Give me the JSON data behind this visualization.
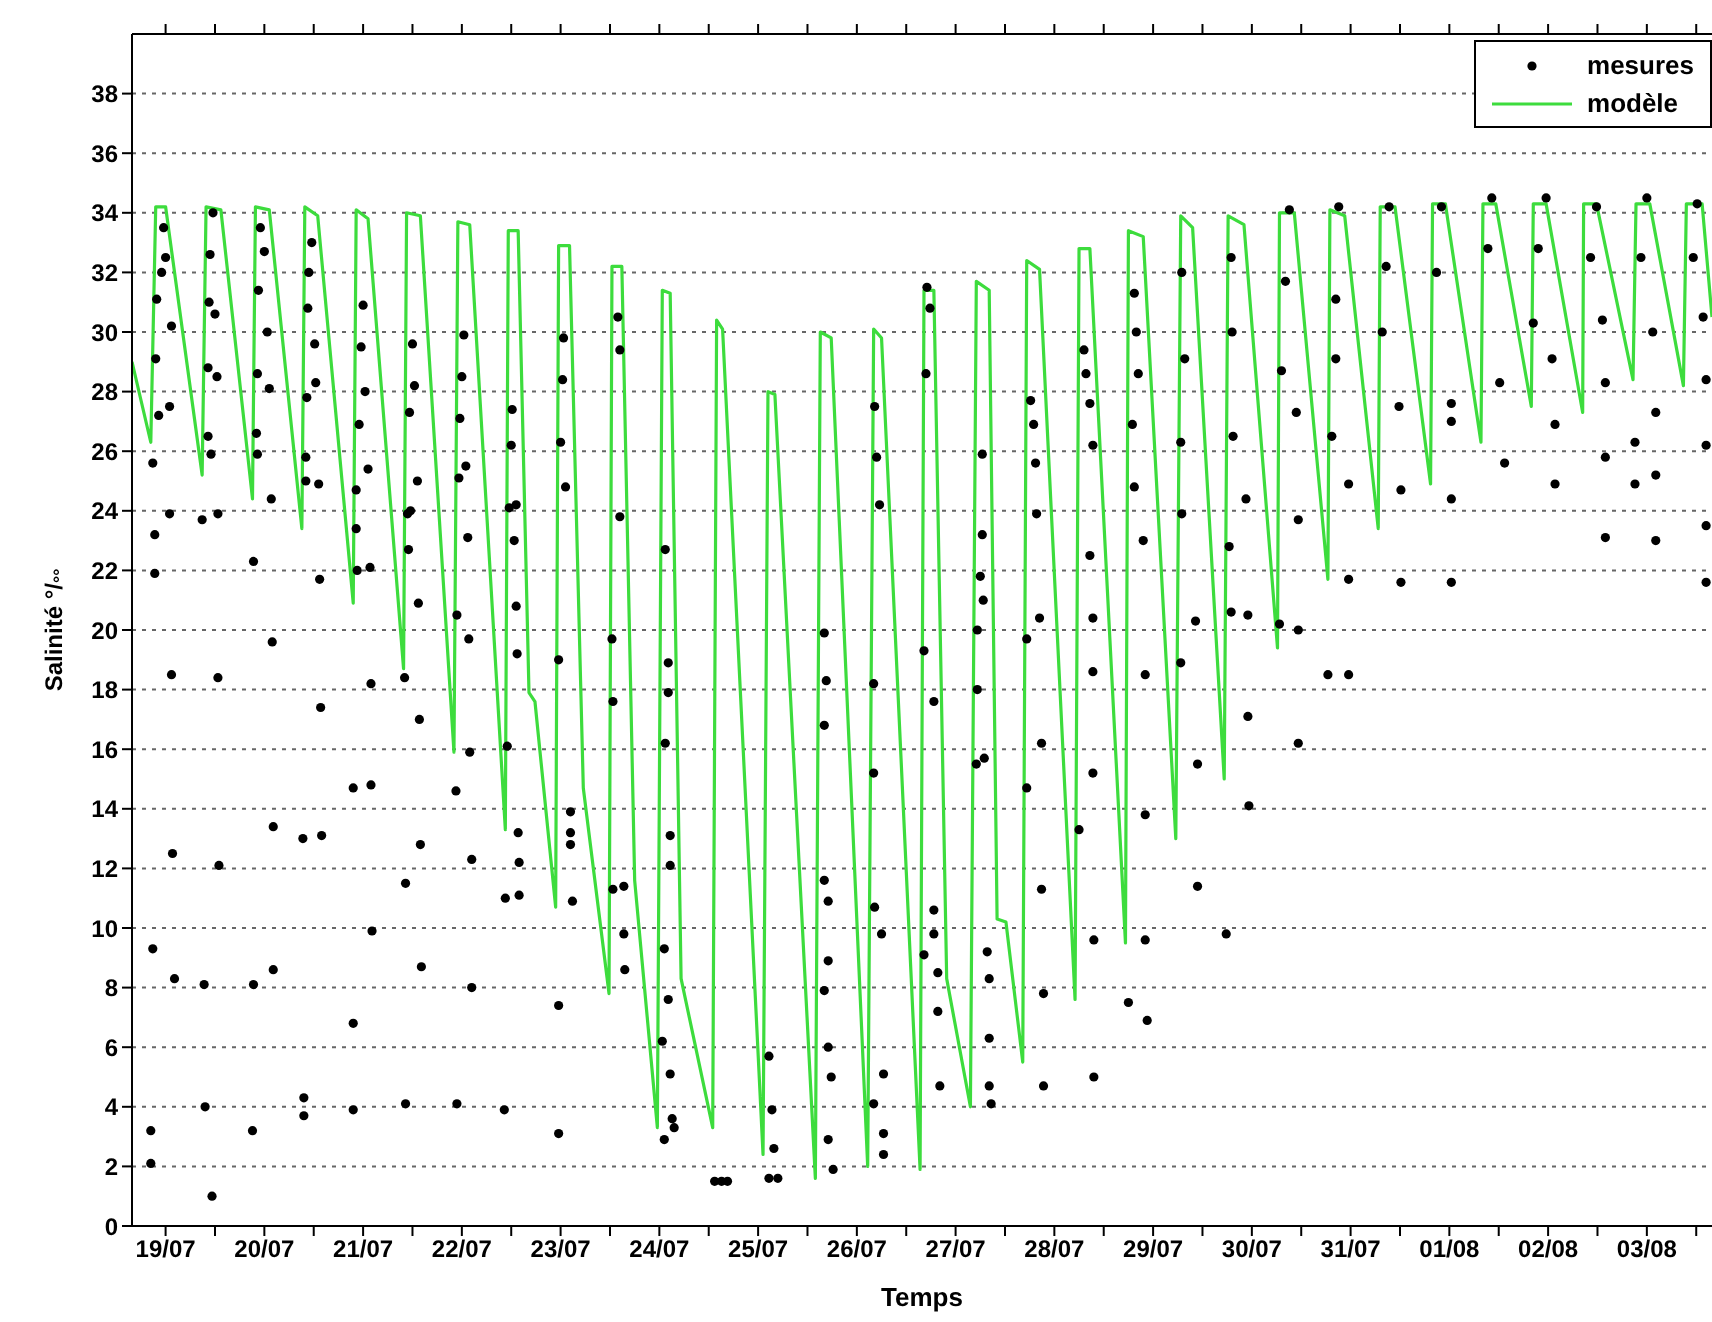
{
  "chart_data": {
    "type": "line",
    "xlabel": "Temps",
    "ylabel": "Salinité °/$_{°°}$",
    "xlim": [
      "--07-18T15:50",
      "--08-03T15:50"
    ],
    "ylim": [
      0,
      40
    ],
    "xticks": [
      {
        "value": "--07-19",
        "label": "19/07"
      },
      {
        "value": "--07-19T12:00",
        "label": null
      },
      {
        "value": "--07-20",
        "label": "20/07"
      },
      {
        "value": "--07-20T12:00",
        "label": null
      },
      {
        "value": "--07-21",
        "label": "21/07"
      },
      {
        "value": "--07-21T12:00",
        "label": null
      },
      {
        "value": "--07-22",
        "label": "22/07"
      },
      {
        "value": "--07-22T12:00",
        "label": null
      },
      {
        "value": "--07-23",
        "label": "23/07"
      },
      {
        "value": "--07-23T12:00",
        "label": null
      },
      {
        "value": "--07-24",
        "label": "24/07"
      },
      {
        "value": "--07-24T12:00",
        "label": null
      },
      {
        "value": "--07-25",
        "label": "25/07"
      },
      {
        "value": "--07-25T12:00",
        "label": null
      },
      {
        "value": "--07-26",
        "label": "26/07"
      },
      {
        "value": "--07-26T12:00",
        "label": null
      },
      {
        "value": "--07-27",
        "label": "27/07"
      },
      {
        "value": "--07-27T12:00",
        "label": null
      },
      {
        "value": "--07-28",
        "label": "28/07"
      },
      {
        "value": "--07-28T12:00",
        "label": null
      },
      {
        "value": "--07-29",
        "label": "29/07"
      },
      {
        "value": "--07-29T12:00",
        "label": null
      },
      {
        "value": "--07-30",
        "label": "30/07"
      },
      {
        "value": "--07-30T12:00",
        "label": null
      },
      {
        "value": "--07-31",
        "label": "31/07"
      },
      {
        "value": "--07-31T12:00",
        "label": null
      },
      {
        "value": "--08-01",
        "label": "01/08"
      },
      {
        "value": "--08-01T12:00",
        "label": null
      },
      {
        "value": "--08-02",
        "label": "02/08"
      },
      {
        "value": "--08-02T12:00",
        "label": null
      },
      {
        "value": "--08-03",
        "label": "03/08"
      },
      {
        "value": "--08-03T12:00",
        "label": null
      }
    ],
    "yticks": [
      0,
      2,
      4,
      6,
      8,
      10,
      12,
      14,
      16,
      18,
      20,
      22,
      24,
      26,
      28,
      30,
      32,
      34,
      36,
      38
    ],
    "grid": "y",
    "legend": "top right",
    "series": [
      {
        "name": "mesures",
        "type": "scatter",
        "marker": "circle",
        "color": "#000000",
        "x": [
          "--07-18T20:53",
          "--07-18T21:22",
          "--07-18T21:22",
          "--07-18T20:53",
          "--07-18T20:24",
          "--07-18T20:24",
          "--07-18T21:36",
          "--07-18T21:50",
          "--07-18T23:02",
          "--07-18T23:31",
          "--07-19T00:00",
          "--07-18T22:19",
          "--07-19T00:58",
          "--07-19T01:26",
          "--07-19T01:41",
          "--07-19T02:10",
          "--07-19T01:26",
          "--07-19T00:58",
          "--07-19T08:53",
          "--07-19T09:22",
          "--07-19T09:36",
          "--07-19T10:19",
          "--07-19T10:19",
          "--07-19T10:34",
          "--07-19T10:48",
          "--07-19T11:31",
          "--07-19T12:00",
          "--07-19T12:29",
          "--07-19T12:43",
          "--07-19T12:43",
          "--07-19T12:58",
          "--07-19T11:17",
          "--07-19T11:02",
          "--07-19T21:22",
          "--07-19T21:22",
          "--07-19T21:07",
          "--07-19T22:05",
          "--07-19T22:19",
          "--07-19T22:34",
          "--07-19T23:02",
          "--07-20T00:00",
          "--07-20T00:43",
          "--07-20T01:12",
          "--07-20T01:41",
          "--07-20T01:55",
          "--07-20T02:10",
          "--07-20T02:10",
          "--07-19T22:19",
          "--07-20T09:22",
          "--07-20T09:36",
          "--07-20T09:36",
          "--07-20T10:05",
          "--07-20T10:05",
          "--07-20T10:19",
          "--07-20T10:34",
          "--07-20T10:48",
          "--07-20T11:31",
          "--07-20T12:14",
          "--07-20T12:29",
          "--07-20T13:12",
          "--07-20T13:26",
          "--07-20T13:41",
          "--07-20T13:55",
          "--07-20T21:36",
          "--07-20T21:36",
          "--07-20T21:36",
          "--07-20T22:19",
          "--07-20T22:19",
          "--07-20T22:34",
          "--07-20T23:02",
          "--07-20T23:31",
          "--07-21T00:00",
          "--07-21T00:29",
          "--07-21T01:12",
          "--07-21T01:41",
          "--07-21T01:55",
          "--07-21T01:55",
          "--07-21T02:10",
          "--07-21T10:05",
          "--07-21T10:19",
          "--07-21T10:19",
          "--07-21T10:48",
          "--07-21T11:02",
          "--07-21T11:17",
          "--07-21T12:00",
          "--07-21T12:29",
          "--07-21T13:12",
          "--07-21T13:26",
          "--07-21T13:41",
          "--07-21T13:55",
          "--07-21T14:10",
          "--07-21T11:31",
          "--07-21T22:34",
          "--07-21T22:48",
          "--07-21T22:48",
          "--07-21T23:17",
          "--07-21T23:31",
          "--07-22T00:00",
          "--07-22T00:29",
          "--07-22T00:58",
          "--07-22T01:26",
          "--07-22T01:41",
          "--07-22T01:55",
          "--07-22T02:24",
          "--07-22T02:24",
          "--07-22T11:02",
          "--07-22T10:34",
          "--07-22T10:19",
          "--07-22T11:31",
          "--07-22T12:00",
          "--07-22T12:14",
          "--07-22T12:43",
          "--07-22T13:12",
          "--07-22T13:26",
          "--07-22T13:41",
          "--07-22T13:55",
          "--07-22T13:55",
          "--07-22T13:12",
          "--07-22T23:31",
          "--07-22T23:31",
          "--07-22T23:31",
          "--07-23T00:00",
          "--07-23T00:29",
          "--07-23T00:43",
          "--07-23T01:12",
          "--07-23T02:24",
          "--07-23T02:24",
          "--07-23T02:24",
          "--07-23T02:53",
          "--07-23T12:29",
          "--07-23T12:43",
          "--07-23T13:55",
          "--07-23T14:24",
          "--07-23T14:24",
          "--07-23T12:43",
          "--07-23T15:22",
          "--07-23T15:22",
          "--07-23T15:36",
          "--07-24T00:43",
          "--07-24T01:12",
          "--07-24T02:10",
          "--07-24T02:38",
          "--07-24T03:07",
          "--07-24T03:36",
          "--07-24T01:26",
          "--07-24T02:10",
          "--07-24T02:10",
          "--07-24T01:26",
          "--07-24T02:38",
          "--07-24T02:38",
          "--07-24T01:12",
          "--07-24T13:26",
          "--07-24T15:07",
          "--07-24T16:34",
          "--07-25T02:38",
          "--07-25T03:22",
          "--07-25T03:50",
          "--07-25T02:38",
          "--07-25T04:48",
          "--07-25T16:05",
          "--07-25T16:34",
          "--07-25T16:05",
          "--07-25T16:05",
          "--07-25T17:02",
          "--07-25T17:02",
          "--07-25T16:05",
          "--07-25T17:02",
          "--07-25T17:46",
          "--07-25T17:02",
          "--07-25T18:14",
          "--07-26T04:19",
          "--07-26T04:48",
          "--07-26T05:31",
          "--07-26T04:05",
          "--07-26T04:05",
          "--07-26T04:19",
          "--07-26T06:00",
          "--07-26T04:05",
          "--07-26T06:29",
          "--07-26T06:29",
          "--07-26T06:29",
          "--07-26T17:02",
          "--07-26T17:46",
          "--07-26T16:48",
          "--07-26T16:19",
          "--07-26T18:43",
          "--07-26T18:43",
          "--07-26T18:43",
          "--07-26T19:41",
          "--07-26T19:41",
          "--07-26T16:19",
          "--07-26T20:10",
          "--07-27T06:29",
          "--07-27T06:29",
          "--07-27T06:00",
          "--07-27T06:43",
          "--07-27T05:17",
          "--07-27T05:17",
          "--07-27T05:02",
          "--07-27T06:58",
          "--07-27T07:41",
          "--07-27T08:10",
          "--07-27T08:10",
          "--07-27T08:10",
          "--07-27T08:38",
          "--07-27T18:14",
          "--07-27T18:58",
          "--07-27T19:26",
          "--07-27T19:41",
          "--07-27T17:17",
          "--07-27T17:17",
          "--07-27T20:24",
          "--07-27T20:53",
          "--07-27T20:53",
          "--07-27T21:22",
          "--07-27T21:22",
          "--07-28T07:12",
          "--07-28T07:41",
          "--07-28T08:38",
          "--07-28T09:22",
          "--07-28T08:38",
          "--07-28T09:22",
          "--07-28T09:22",
          "--07-28T09:22",
          "--07-28T06:00",
          "--07-28T09:36",
          "--07-28T09:36",
          "--07-28T19:26",
          "--07-28T19:55",
          "--07-28T20:24",
          "--07-28T18:58",
          "--07-28T19:26",
          "--07-28T21:36",
          "--07-28T22:05",
          "--07-28T22:05",
          "--07-28T22:05",
          "--07-28T18:00",
          "--07-28T22:34",
          "--07-29T06:58",
          "--07-29T07:41",
          "--07-29T06:43",
          "--07-29T06:58",
          "--07-29T06:43",
          "--07-29T10:19",
          "--07-29T10:48",
          "--07-29T10:48",
          "--07-29T18:58",
          "--07-29T19:12",
          "--07-29T19:26",
          "--07-29T18:29",
          "--07-29T18:58",
          "--07-29T22:34",
          "--07-29T23:02",
          "--07-29T23:02",
          "--07-29T23:17",
          "--07-29T17:46",
          "--07-30T09:07",
          "--07-30T08:10",
          "--07-30T07:12",
          "--07-30T10:48",
          "--07-30T11:17",
          "--07-30T11:17",
          "--07-30T11:17",
          "--07-30T06:43",
          "--07-30T21:07",
          "--07-30T20:24",
          "--07-30T20:24",
          "--07-30T19:26",
          "--07-30T23:31",
          "--07-30T23:31",
          "--07-30T18:29",
          "--07-30T23:31",
          "--07-31T09:22",
          "--07-31T08:38",
          "--07-31T07:41",
          "--07-31T11:46",
          "--07-31T12:14",
          "--07-31T12:14",
          "--07-31T22:05",
          "--07-31T20:53",
          "--08-01T00:29",
          "--08-01T00:29",
          "--08-01T00:29",
          "--08-01T00:29",
          "--08-01T10:19",
          "--08-01T09:22",
          "--08-01T12:14",
          "--08-01T13:26",
          "--08-01T23:31",
          "--08-01T21:36",
          "--08-01T20:24",
          "--08-02T00:58",
          "--08-02T01:41",
          "--08-02T01:41",
          "--08-02T11:46",
          "--08-02T10:19",
          "--08-02T13:12",
          "--08-02T13:55",
          "--08-02T13:55",
          "--08-02T13:55",
          "--08-03T00:00",
          "--08-02T22:34",
          "--08-03T01:26",
          "--08-03T02:10",
          "--08-03T02:10",
          "--08-03T02:10",
          "--08-02T21:07",
          "--08-02T21:07",
          "--08-03T12:14",
          "--08-03T11:17",
          "--08-03T13:41",
          "--08-03T14:24",
          "--08-03T14:24",
          "--08-03T14:24",
          "--08-03T14:24"
        ],
        "values": [
          25.6,
          23.2,
          21.9,
          9.3,
          3.2,
          2.1,
          29.1,
          31.1,
          32.0,
          33.5,
          32.5,
          27.2,
          23.9,
          18.5,
          12.5,
          8.3,
          30.2,
          27.5,
          23.7,
          8.1,
          4.0,
          28.8,
          26.5,
          31.0,
          32.6,
          34.0,
          30.6,
          28.5,
          23.9,
          18.4,
          12.1,
          1.0,
          25.9,
          22.3,
          8.1,
          3.2,
          26.6,
          28.6,
          31.4,
          33.5,
          32.7,
          30.0,
          28.1,
          24.4,
          19.6,
          13.4,
          8.6,
          25.9,
          13.0,
          4.3,
          3.7,
          25.8,
          25.0,
          27.8,
          30.8,
          32.0,
          33.0,
          29.6,
          28.3,
          24.9,
          21.7,
          17.4,
          13.1,
          14.7,
          6.8,
          3.9,
          24.7,
          23.4,
          22.0,
          26.9,
          29.5,
          30.9,
          28.0,
          25.4,
          22.1,
          18.2,
          14.8,
          9.9,
          18.4,
          11.5,
          4.1,
          23.9,
          22.7,
          27.3,
          29.6,
          28.2,
          25.0,
          20.9,
          17.0,
          12.8,
          8.7,
          24.0,
          14.6,
          20.5,
          4.1,
          25.1,
          27.1,
          28.5,
          29.9,
          25.5,
          23.1,
          19.7,
          15.9,
          12.3,
          8.0,
          16.1,
          11.0,
          3.9,
          24.1,
          26.2,
          27.4,
          23.0,
          20.8,
          19.2,
          13.2,
          12.2,
          11.1,
          24.2,
          19.0,
          7.4,
          3.1,
          26.3,
          28.4,
          29.8,
          24.8,
          13.9,
          13.2,
          12.8,
          10.9,
          19.7,
          17.6,
          30.5,
          29.4,
          23.8,
          11.3,
          11.4,
          9.8,
          8.6,
          6.2,
          9.3,
          7.6,
          5.1,
          3.6,
          3.3,
          22.7,
          18.9,
          17.9,
          16.2,
          13.1,
          12.1,
          2.9,
          1.5,
          1.5,
          1.5,
          5.7,
          3.9,
          2.6,
          1.6,
          1.6,
          19.9,
          18.3,
          16.8,
          11.6,
          10.9,
          8.9,
          7.9,
          6.0,
          5.0,
          2.9,
          1.9,
          27.5,
          25.8,
          24.2,
          18.2,
          15.2,
          10.7,
          9.8,
          4.1,
          5.1,
          3.1,
          2.4,
          31.5,
          30.8,
          28.6,
          19.3,
          17.6,
          10.6,
          9.8,
          8.5,
          7.2,
          9.1,
          4.7,
          25.9,
          23.2,
          21.8,
          21.0,
          20.0,
          18.0,
          15.5,
          15.7,
          9.2,
          8.3,
          6.3,
          4.7,
          4.1,
          27.7,
          26.9,
          25.6,
          23.9,
          19.7,
          14.7,
          20.4,
          16.2,
          11.3,
          7.8,
          4.7,
          29.4,
          28.6,
          27.6,
          26.2,
          22.5,
          20.4,
          18.6,
          15.2,
          13.3,
          9.6,
          5.0,
          31.3,
          30.0,
          28.6,
          26.9,
          24.8,
          23.0,
          18.5,
          13.8,
          9.6,
          7.5,
          6.9,
          32.0,
          29.1,
          26.3,
          23.9,
          18.9,
          20.3,
          15.5,
          11.4,
          32.5,
          30.0,
          26.5,
          22.8,
          20.6,
          24.4,
          20.5,
          17.1,
          14.1,
          9.8,
          34.1,
          31.7,
          28.7,
          27.3,
          23.7,
          20.0,
          16.2,
          20.2,
          34.2,
          31.1,
          29.1,
          26.5,
          24.9,
          21.7,
          18.5,
          18.5,
          34.2,
          32.2,
          30.0,
          27.5,
          24.7,
          21.6,
          34.2,
          32.0,
          27.6,
          27.0,
          24.4,
          21.6,
          34.5,
          32.8,
          28.3,
          25.6,
          34.5,
          32.8,
          30.3,
          29.1,
          26.9,
          24.9,
          34.2,
          32.5,
          30.4,
          28.3,
          25.8,
          23.1,
          34.5,
          32.5,
          30.0,
          27.3,
          25.2,
          23.0,
          26.3,
          24.9,
          34.3,
          32.5,
          30.5,
          28.4,
          26.2,
          23.5,
          21.6
        ]
      },
      {
        "name": "modèle",
        "marker": "none",
        "line_style": "solid",
        "color": "#3ddc3d",
        "x": [
          "--07-18T15:50",
          "--07-18T20:24",
          "--07-18T21:36",
          "--07-19T00:00",
          "--07-19T08:53",
          "--07-19T09:50",
          "--07-19T13:26",
          "--07-19T21:07",
          "--07-19T21:50",
          "--07-20T01:12",
          "--07-20T09:07",
          "--07-20T09:50",
          "--07-20T12:58",
          "--07-20T21:36",
          "--07-20T22:19",
          "--07-21T01:12",
          "--07-21T09:50",
          "--07-21T10:34",
          "--07-21T13:55",
          "--07-21T22:05",
          "--07-21T23:02",
          "--07-22T01:55",
          "--07-22T10:34",
          "--07-22T11:17",
          "--07-22T13:41",
          "--07-22T16:19",
          "--07-22T17:46",
          "--07-22T22:48",
          "--07-22T23:31",
          "--07-23T02:10",
          "--07-23T05:31",
          "--07-23T11:46",
          "--07-23T12:29",
          "--07-23T14:53",
          "--07-23T18:00",
          "--07-23T23:31",
          "--07-24T00:43",
          "--07-24T02:38",
          "--07-24T05:17",
          "--07-24T12:58",
          "--07-24T13:55",
          "--07-24T15:22",
          "--07-25T01:12",
          "--07-25T02:24",
          "--07-25T04:05",
          "--07-25T13:55",
          "--07-25T15:07",
          "--07-25T17:46",
          "--07-26T02:38",
          "--07-26T04:05",
          "--07-26T06:00",
          "--07-26T15:22",
          "--07-26T16:19",
          "--07-26T18:43",
          "--07-26T21:50",
          "--07-27T03:36",
          "--07-27T05:02",
          "--07-27T08:10",
          "--07-27T10:05",
          "--07-27T12:14",
          "--07-27T16:19",
          "--07-27T17:17",
          "--07-27T20:24",
          "--07-28T05:02",
          "--07-28T06:00",
          "--07-28T08:38",
          "--07-28T17:17",
          "--07-28T18:00",
          "--07-28T21:36",
          "--07-29T05:31",
          "--07-29T06:43",
          "--07-29T09:36",
          "--07-29T17:17",
          "--07-29T18:14",
          "--07-29T22:05",
          "--07-30T06:14",
          "--07-30T06:43",
          "--07-30T10:19",
          "--07-30T18:29",
          "--07-30T18:58",
          "--07-30T22:34",
          "--07-31T06:43",
          "--07-31T07:12",
          "--07-31T10:48",
          "--07-31T19:26",
          "--07-31T19:55",
          "--07-31T23:02",
          "--08-01T07:41",
          "--08-01T08:10",
          "--08-01T11:17",
          "--08-01T19:55",
          "--08-01T20:24",
          "--08-01T23:31",
          "--08-02T08:24",
          "--08-02T08:38",
          "--08-02T11:46",
          "--08-02T20:38",
          "--08-02T21:22",
          "--08-03T00:43",
          "--08-03T08:53",
          "--08-03T09:36",
          "--08-03T13:26",
          "--08-03T15:50"
        ],
        "values": [
          29.0,
          26.3,
          34.2,
          34.2,
          25.2,
          34.2,
          34.1,
          24.4,
          34.2,
          34.1,
          23.4,
          34.2,
          33.9,
          20.9,
          34.1,
          33.8,
          18.7,
          34.0,
          33.9,
          15.9,
          33.7,
          33.6,
          13.3,
          33.4,
          33.4,
          17.9,
          17.6,
          10.7,
          32.9,
          32.9,
          14.7,
          7.8,
          32.2,
          32.2,
          11.6,
          3.3,
          31.4,
          31.3,
          8.3,
          3.3,
          30.4,
          30.1,
          2.4,
          28.0,
          27.9,
          1.6,
          30.0,
          29.8,
          2.0,
          30.1,
          29.8,
          1.9,
          31.4,
          31.4,
          8.3,
          4.0,
          31.7,
          31.4,
          10.3,
          10.2,
          5.5,
          32.4,
          32.1,
          7.6,
          32.8,
          32.8,
          9.5,
          33.4,
          33.2,
          13.0,
          33.9,
          33.5,
          15.0,
          33.9,
          33.6,
          19.4,
          34.0,
          34.0,
          21.7,
          34.1,
          33.9,
          23.4,
          34.2,
          34.2,
          24.9,
          34.3,
          34.3,
          26.3,
          34.3,
          34.3,
          27.5,
          34.3,
          34.3,
          27.3,
          34.3,
          34.3,
          28.4,
          34.3,
          34.3,
          28.2,
          34.3,
          34.3,
          30.5
        ]
      }
    ]
  }
}
